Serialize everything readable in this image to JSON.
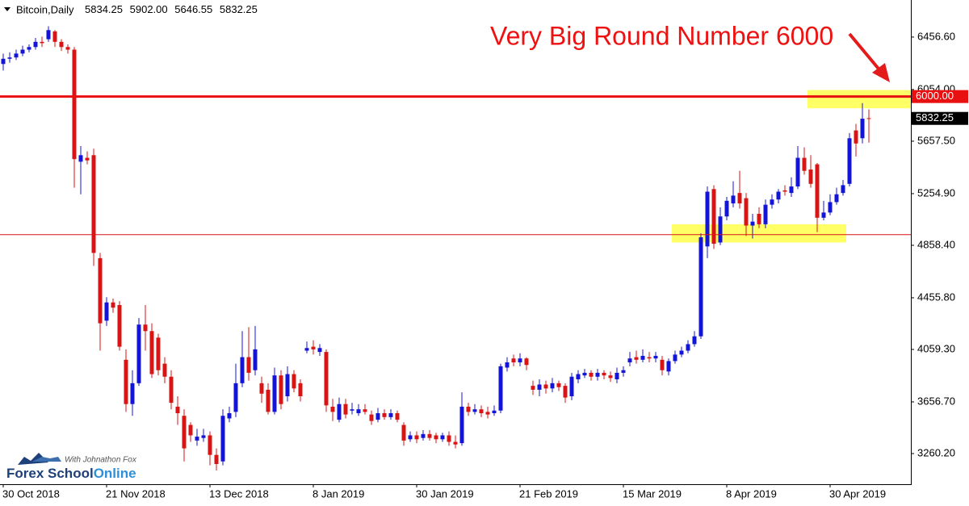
{
  "chart_data": {
    "type": "candlestick",
    "symbol": "Bitcoin,Daily",
    "header_values": [
      {
        "value": 5834.25,
        "label": "5834.25"
      },
      {
        "value": 5902,
        "label": "5902.00"
      },
      {
        "value": 5646.55,
        "label": "5646.55"
      },
      {
        "value": 5832.25,
        "label": "5832.25"
      }
    ],
    "annotation": "Very Big Round Number 6000",
    "brand": {
      "tagline": "With Johnathon Fox",
      "name": "Forex School",
      "name_accent": "Online"
    },
    "up_color": "#1414d8",
    "down_color": "#d81414",
    "categories": [
      "30 Oct 2018",
      null,
      null,
      null,
      null,
      null,
      null,
      null,
      null,
      null,
      null,
      null,
      null,
      null,
      null,
      null,
      "21 Nov 2018",
      null,
      null,
      null,
      null,
      null,
      null,
      null,
      null,
      null,
      null,
      null,
      null,
      null,
      null,
      null,
      "13 Dec 2018",
      null,
      null,
      null,
      null,
      null,
      null,
      null,
      null,
      null,
      null,
      null,
      null,
      null,
      null,
      null,
      "8 Jan 2019",
      null,
      null,
      null,
      null,
      null,
      null,
      null,
      null,
      null,
      null,
      null,
      null,
      null,
      null,
      null,
      "30 Jan 2019",
      null,
      null,
      null,
      null,
      null,
      null,
      null,
      null,
      null,
      null,
      null,
      null,
      null,
      null,
      null,
      "21 Feb 2019",
      null,
      null,
      null,
      null,
      null,
      null,
      null,
      null,
      null,
      null,
      null,
      null,
      null,
      null,
      null,
      "15 Mar 2019",
      null,
      null,
      null,
      null,
      null,
      null,
      null,
      null,
      null,
      null,
      null,
      null,
      null,
      null,
      null,
      "8 Apr 2019",
      null,
      null,
      null,
      null,
      null,
      null,
      null,
      null,
      null,
      null,
      null,
      null,
      null,
      null,
      null,
      "30 Apr 2019",
      null,
      null,
      null,
      null,
      null,
      null
    ],
    "open": [
      6250,
      6290,
      6300,
      6330,
      6360,
      6380,
      6420,
      6440,
      6500,
      6420,
      6380,
      6360,
      5500,
      5530,
      5550,
      4760,
      4280,
      4420,
      4400,
      3980,
      3640,
      3800,
      4250,
      4200,
      4150,
      3950,
      3850,
      3620,
      3550,
      3480,
      3360,
      3380,
      3400,
      3250,
      3200,
      3530,
      3580,
      3800,
      4000,
      3900,
      3800,
      3750,
      3580,
      3860,
      3700,
      3870,
      3800,
      4050,
      4080,
      4040,
      4040,
      3620,
      3520,
      3640,
      3590,
      3570,
      3600,
      3560,
      3520,
      3570,
      3540,
      3570,
      3480,
      3370,
      3400,
      3380,
      3410,
      3400,
      3370,
      3400,
      3350,
      3340,
      3620,
      3580,
      3600,
      3580,
      3570,
      3590,
      3920,
      3990,
      3960,
      3990,
      3780,
      3750,
      3790,
      3760,
      3800,
      3780,
      3700,
      3830,
      3860,
      3880,
      3850,
      3880,
      3860,
      3830,
      3880,
      3960,
      4000,
      3980,
      4000,
      3990,
      3980,
      3890,
      3970,
      4020,
      4050,
      4100,
      4160,
      4850,
      5290,
      4880,
      5080,
      5180,
      5260,
      5220,
      5010,
      5100,
      5020,
      5170,
      5210,
      5280,
      5260,
      5310,
      5530,
      5440,
      5480,
      5070,
      5110,
      5190,
      5260,
      5330,
      5740,
      5680,
      5834.25
    ],
    "high": [
      6330,
      6340,
      6360,
      6390,
      6400,
      6450,
      6460,
      6540,
      6510,
      6440,
      6400,
      6380,
      5620,
      5580,
      5600,
      4800,
      4460,
      4450,
      4430,
      4060,
      3900,
      4300,
      4400,
      4260,
      4180,
      4000,
      3900,
      3700,
      3600,
      3500,
      3450,
      3450,
      3430,
      3300,
      3600,
      3620,
      3950,
      4200,
      4230,
      4240,
      3850,
      3800,
      3920,
      3900,
      3930,
      3900,
      3830,
      4120,
      4130,
      4100,
      4060,
      3680,
      3690,
      3680,
      3650,
      3640,
      3640,
      3590,
      3610,
      3600,
      3600,
      3590,
      3500,
      3430,
      3430,
      3440,
      3440,
      3420,
      3420,
      3430,
      3400,
      3730,
      3650,
      3640,
      3630,
      3620,
      3630,
      3950,
      4000,
      4020,
      4030,
      4000,
      3820,
      3830,
      3820,
      3840,
      3820,
      3800,
      3880,
      3900,
      3910,
      3900,
      3910,
      3900,
      3890,
      3920,
      3930,
      4040,
      4050,
      4060,
      4040,
      4040,
      4010,
      3990,
      4050,
      4080,
      4130,
      4200,
      4950,
      5310,
      5320,
      5150,
      5230,
      5350,
      5430,
      5260,
      5100,
      5150,
      5210,
      5250,
      5290,
      5320,
      5380,
      5620,
      5610,
      5550,
      5490,
      5200,
      5250,
      5300,
      5360,
      5720,
      5790,
      5950,
      5902
    ],
    "low": [
      6200,
      6260,
      6280,
      6310,
      6340,
      6360,
      6380,
      6420,
      6380,
      6350,
      6330,
      5300,
      5250,
      5480,
      4700,
      4050,
      4240,
      4340,
      4050,
      3580,
      3550,
      3780,
      4050,
      3840,
      3860,
      3800,
      3600,
      3480,
      3200,
      3350,
      3320,
      3350,
      3170,
      3130,
      3170,
      3500,
      3540,
      3770,
      3820,
      3860,
      3650,
      3560,
      3560,
      3600,
      3660,
      3730,
      3660,
      4030,
      4020,
      4010,
      3580,
      3510,
      3500,
      3530,
      3560,
      3550,
      3560,
      3480,
      3500,
      3520,
      3520,
      3500,
      3320,
      3350,
      3340,
      3360,
      3360,
      3340,
      3350,
      3320,
      3300,
      3320,
      3550,
      3560,
      3540,
      3530,
      3550,
      3570,
      3890,
      3930,
      3930,
      3900,
      3710,
      3700,
      3720,
      3730,
      3740,
      3650,
      3670,
      3800,
      3840,
      3820,
      3820,
      3830,
      3810,
      3800,
      3850,
      3930,
      3950,
      3960,
      3960,
      3960,
      3860,
      3860,
      3950,
      4000,
      4030,
      4080,
      4140,
      4760,
      4830,
      4860,
      5050,
      5150,
      5140,
      4930,
      4910,
      4990,
      4990,
      5140,
      5180,
      5240,
      5230,
      5290,
      5400,
      5300,
      4960,
      5050,
      5090,
      5170,
      5240,
      5310,
      5540,
      5640,
      5646.55
    ],
    "close": [
      6290,
      6300,
      6330,
      6360,
      6380,
      6420,
      6410,
      6510,
      6420,
      6380,
      6360,
      5520,
      5550,
      5510,
      4800,
      4260,
      4420,
      4380,
      4080,
      3640,
      3800,
      4250,
      4200,
      3870,
      3900,
      3850,
      3650,
      3570,
      3300,
      3400,
      3390,
      3400,
      3250,
      3180,
      3550,
      3570,
      3800,
      4000,
      3880,
      4060,
      3720,
      3580,
      3860,
      3640,
      3870,
      3760,
      3700,
      4070,
      4060,
      4070,
      3630,
      3580,
      3640,
      3560,
      3600,
      3600,
      3580,
      3510,
      3570,
      3540,
      3570,
      3520,
      3360,
      3400,
      3370,
      3410,
      3380,
      3370,
      3400,
      3350,
      3330,
      3620,
      3580,
      3600,
      3570,
      3560,
      3590,
      3930,
      3960,
      3960,
      3990,
      3940,
      3750,
      3790,
      3760,
      3800,
      3770,
      3690,
      3850,
      3870,
      3880,
      3850,
      3880,
      3860,
      3840,
      3880,
      3900,
      3990,
      3980,
      4010,
      3990,
      4010,
      3900,
      3970,
      4020,
      4050,
      4100,
      4160,
      4920,
      5270,
      4870,
      5080,
      5200,
      5240,
      5180,
      5010,
      5040,
      5020,
      5170,
      5210,
      5270,
      5270,
      5310,
      5530,
      5430,
      5330,
      5070,
      5110,
      5190,
      5250,
      5320,
      5680,
      5640,
      5830,
      5832.25
    ],
    "ylim": [
      3025,
      6741
    ],
    "yticks": [
      {
        "value": 3260.2,
        "label": "3260.20"
      },
      {
        "value": 3656.7,
        "label": "3656.70"
      },
      {
        "value": 4059.3,
        "label": "4059.30"
      },
      {
        "value": 4455.8,
        "label": "4455.80"
      },
      {
        "value": 4858.4,
        "label": "4858.40"
      },
      {
        "value": 5254.9,
        "label": "5254.90"
      },
      {
        "value": 5657.5,
        "label": "5657.50"
      },
      {
        "value": 6054,
        "label": "6054.00"
      },
      {
        "value": 6456.6,
        "label": "6456.60"
      }
    ],
    "hlines": [
      {
        "value": 6000,
        "label": "6000.00",
        "color": "#e81010",
        "width": 3
      },
      {
        "value": 4940,
        "color": "#d81414",
        "width": 1
      }
    ],
    "price_label": {
      "value": 5832.25,
      "label": "5832.25"
    },
    "zones": [
      {
        "from": 5910,
        "to": 6050,
        "start": 125,
        "end": 134,
        "extend_right": true,
        "color": "#ffff66"
      },
      {
        "from": 4880,
        "to": 5020,
        "start": 104,
        "end": 130,
        "color": "#ffff66"
      }
    ]
  }
}
